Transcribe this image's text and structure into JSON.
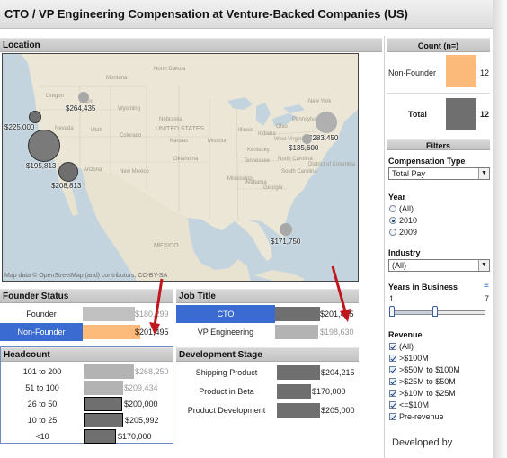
{
  "dashboard": {
    "title": "CTO / VP Engineering Compensation at Venture-Backed Companies (US)"
  },
  "location": {
    "header": "Location",
    "attribution": "Map data © OpenStreetMap (and) contributors, CC-BY-SA",
    "labels": {
      "wa": "$264,435",
      "ca_small": "$225,000",
      "ca_large": "$195,813",
      "socal": "$208,813",
      "ne": "$283,450",
      "mid_atl": "$135,600",
      "fl": "$171,750"
    },
    "geo_names": {
      "montana": "Montana",
      "north_dakota": "North Dakota",
      "oregon": "Oregon",
      "idaho": "Idaho",
      "wyoming": "Wyoming",
      "nebraska": "Nebraska",
      "nevada": "Nevada",
      "utah": "Utah",
      "colorado": "Colorado",
      "kansas": "Kansas",
      "missouri": "Missouri",
      "united_states": "UNITED STATES",
      "oklahoma": "Oklahoma",
      "arizona": "Arizona",
      "new_mexico": "New Mexico",
      "mexico": "MEXICO",
      "new_york": "New York",
      "pennsylvania": "Pennsylvania",
      "virginia": "Virginia",
      "north_carolina": "North Carolina",
      "west_virginia": "West Virginia",
      "south_carolina": "South Carolina",
      "illinois": "Illinois",
      "indiana": "Indiana",
      "ohio": "Ohio",
      "kentucky": "Kentucky",
      "tennessee": "Tennessee",
      "georgia": "Georgia",
      "alabama": "Alabama",
      "mississippi": "Mississippi",
      "dc": "District of Columbia"
    }
  },
  "founder_status": {
    "header": "Founder Status",
    "rows": [
      {
        "label": "Founder",
        "value": "$180,299"
      },
      {
        "label": "Non-Founder",
        "value": "$201,495"
      }
    ]
  },
  "job_title": {
    "header": "Job Title",
    "rows": [
      {
        "label": "CTO",
        "value": "$201,495"
      },
      {
        "label": "VP Engineering",
        "value": "$198,630"
      }
    ]
  },
  "headcount": {
    "header": "Headcount",
    "rows": [
      {
        "label": "101 to 200",
        "value": "$268,250"
      },
      {
        "label": "51 to 100",
        "value": "$209,434"
      },
      {
        "label": "26 to 50",
        "value": "$200,000"
      },
      {
        "label": "10 to 25",
        "value": "$205,992"
      },
      {
        "label": "<10",
        "value": "$170,000"
      }
    ]
  },
  "development_stage": {
    "header": "Development Stage",
    "rows": [
      {
        "label": "Shipping Product",
        "value": "$204,215"
      },
      {
        "label": "Product in Beta",
        "value": "$170,000"
      },
      {
        "label": "Product Development",
        "value": "$205,000"
      }
    ]
  },
  "count_panel": {
    "header": "Count (n=)",
    "rows": [
      {
        "label": "Non-Founder",
        "value": "12"
      },
      {
        "label": "Total",
        "value": "12"
      }
    ]
  },
  "filters": {
    "header": "Filters",
    "compensation_type": {
      "label": "Compensation Type",
      "value": "Total Pay"
    },
    "year": {
      "label": "Year",
      "options": [
        "(All)",
        "2010",
        "2009"
      ],
      "selected": "2010"
    },
    "industry": {
      "label": "Industry",
      "value": "(All)"
    },
    "years_in_business": {
      "label": "Years in Business",
      "min": "1",
      "max": "7"
    },
    "revenue": {
      "label": "Revenue",
      "options": [
        "(All)",
        ">$100M",
        ">$50M to $100M",
        ">$25M to $50M",
        ">$10M to $25M",
        "<=$10M",
        "Pre-revenue"
      ]
    },
    "footer": "Developed by"
  },
  "colors": {
    "non_founder_bar": "#fbb97a",
    "selected_row": "#3a6bd1",
    "bar_dark": "#6f6f6f",
    "bar_light": "#b3b3b3",
    "bubble": "#7d7d7d",
    "highlight_arrow": "#c0161d"
  }
}
